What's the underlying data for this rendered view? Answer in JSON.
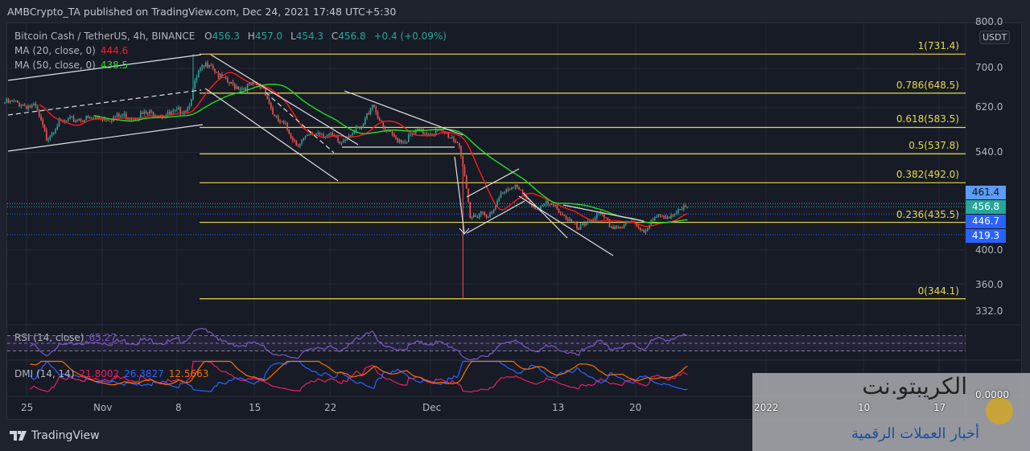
{
  "header": {
    "published": "AMBCrypto_TA published on TradingView.com, Dec 24, 2021 17:48 UTC+5:30"
  },
  "legend": {
    "symbol": "Bitcoin Cash / TetherUS, 4h, BINANCE",
    "open_label": "O",
    "open": "456.3",
    "high_label": "H",
    "high": "457.0",
    "low_label": "L",
    "low": "454.3",
    "close_label": "C",
    "close": "456.8",
    "change": "+0.4 (+0.09%)",
    "ma20_label": "MA (20, close, 0)",
    "ma20_value": "444.6",
    "ma50_label": "MA (50, close, 0)",
    "ma50_value": "438.5",
    "rsi_label": "RSI (14, close)",
    "rsi_value": "65.27",
    "dmi_label": "DMI (14, 14)",
    "dmi_plus": "21.8002",
    "dmi_minus": "26.3827",
    "adx": "12.5663"
  },
  "price_axis": {
    "currency": "USDT",
    "ticks": [
      "800.0",
      "700.0",
      "620.0",
      "540.0",
      "400.0",
      "360.0",
      "332.0"
    ],
    "labels": [
      {
        "value": "461.4",
        "color": "#5b9cf6"
      },
      {
        "value": "456.8",
        "color": "#26a69a"
      },
      {
        "value": "446.7",
        "color": "#2962ff"
      },
      {
        "value": "419.3",
        "color": "#2962ff"
      }
    ]
  },
  "fib_levels": [
    {
      "label": "1(731.4)",
      "price": 731.4
    },
    {
      "label": "0.786(648.5)",
      "price": 648.5
    },
    {
      "label": "0.618(583.5)",
      "price": 583.5
    },
    {
      "label": "0.5(537.8)",
      "price": 537.8
    },
    {
      "label": "0.382(492.0)",
      "price": 492.0
    },
    {
      "label": "0.236(435.5)",
      "price": 435.5
    },
    {
      "label": "0(344.1)",
      "price": 344.1
    }
  ],
  "time_axis": [
    "25",
    "Nov",
    "8",
    "15",
    "22",
    "Dec",
    "13",
    "20",
    "2022",
    "10",
    "17"
  ],
  "dmi_axis_value": "0.0000",
  "footer": {
    "brand": "TradingView"
  },
  "watermark": {
    "title": "الكريبتو.نت",
    "subtitle": "أخبار العملات الرقمية"
  },
  "colors": {
    "up": "#26a69a",
    "down": "#ef5350",
    "ma20": "#ff1a1a",
    "ma50": "#22dd22",
    "fib": "#e6d94a",
    "rsi": "#7e57c2",
    "di_plus": "#e91e63",
    "di_minus": "#2962ff",
    "adx": "#ff6d00"
  },
  "chart_data": {
    "type": "candlestick",
    "title": "Bitcoin Cash / TetherUS, 4h, BINANCE",
    "scale": "log",
    "ylim": [
      320,
      820
    ],
    "x_start": "Oct 23, 2021",
    "daily_close_approx": [
      630,
      625,
      620,
      565,
      590,
      595,
      600,
      598,
      602,
      600,
      605,
      603,
      608,
      610,
      605,
      612,
      620,
      690,
      715,
      680,
      665,
      660,
      665,
      660,
      600,
      585,
      555,
      565,
      575,
      570,
      555,
      575,
      580,
      630,
      580,
      565,
      560,
      575,
      575,
      575,
      570,
      555,
      440,
      450,
      445,
      480,
      490,
      470,
      455,
      460,
      455,
      440,
      425,
      440,
      445,
      430,
      430,
      435,
      425,
      440,
      445,
      447,
      456.8
    ],
    "extremes": [
      {
        "date": "Nov 10",
        "high": 731.4
      },
      {
        "date": "Dec 4",
        "low": 344.1
      }
    ],
    "last": {
      "open": 456.3,
      "high": 457.0,
      "low": 454.3,
      "close": 456.8
    }
  }
}
